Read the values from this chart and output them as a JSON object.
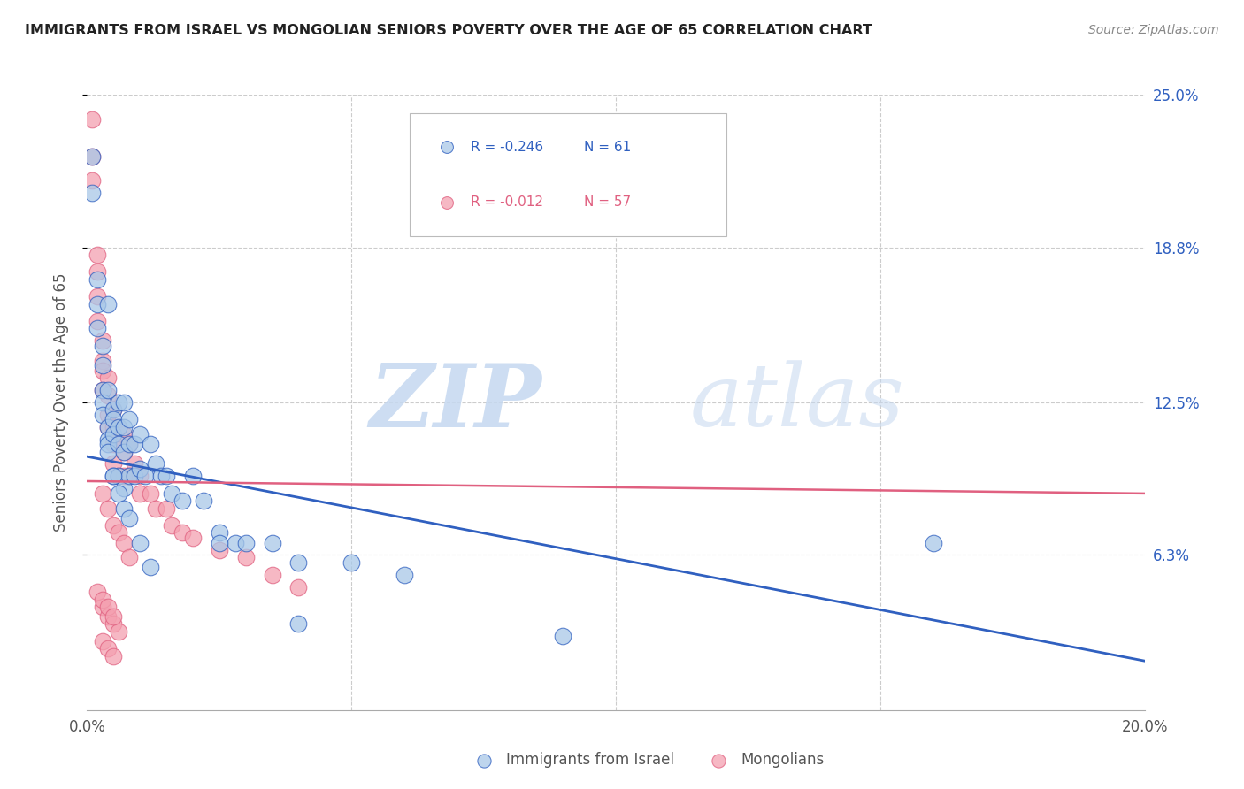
{
  "title": "IMMIGRANTS FROM ISRAEL VS MONGOLIAN SENIORS POVERTY OVER THE AGE OF 65 CORRELATION CHART",
  "source": "Source: ZipAtlas.com",
  "ylabel": "Seniors Poverty Over the Age of 65",
  "legend_label_blue": "Immigrants from Israel",
  "legend_label_pink": "Mongolians",
  "r_blue": -0.246,
  "n_blue": 61,
  "r_pink": -0.012,
  "n_pink": 57,
  "xlim": [
    0.0,
    0.2
  ],
  "ylim": [
    0.0,
    0.25
  ],
  "ytick_right_labels": [
    "25.0%",
    "18.8%",
    "12.5%",
    "6.3%"
  ],
  "ytick_right_positions": [
    0.25,
    0.188,
    0.125,
    0.063
  ],
  "color_blue": "#A8C8E8",
  "color_pink": "#F4A0B0",
  "line_color_blue": "#3060C0",
  "line_color_pink": "#E06080",
  "watermark_zip": "ZIP",
  "watermark_atlas": "atlas",
  "blue_line_x0": 0.0,
  "blue_line_y0": 0.103,
  "blue_line_x1": 0.2,
  "blue_line_y1": 0.02,
  "pink_line_x0": 0.0,
  "pink_line_y0": 0.093,
  "pink_line_x1": 0.2,
  "pink_line_y1": 0.088,
  "blue_scatter_x": [
    0.001,
    0.001,
    0.002,
    0.002,
    0.002,
    0.003,
    0.003,
    0.003,
    0.003,
    0.003,
    0.004,
    0.004,
    0.004,
    0.004,
    0.004,
    0.005,
    0.005,
    0.005,
    0.005,
    0.006,
    0.006,
    0.006,
    0.006,
    0.007,
    0.007,
    0.007,
    0.007,
    0.008,
    0.008,
    0.008,
    0.009,
    0.009,
    0.01,
    0.01,
    0.011,
    0.012,
    0.013,
    0.014,
    0.015,
    0.016,
    0.018,
    0.02,
    0.022,
    0.025,
    0.028,
    0.03,
    0.035,
    0.04,
    0.05,
    0.06,
    0.004,
    0.005,
    0.006,
    0.007,
    0.008,
    0.01,
    0.012,
    0.025,
    0.04,
    0.16,
    0.09
  ],
  "blue_scatter_y": [
    0.225,
    0.21,
    0.175,
    0.165,
    0.155,
    0.148,
    0.14,
    0.13,
    0.125,
    0.12,
    0.165,
    0.115,
    0.11,
    0.108,
    0.105,
    0.122,
    0.118,
    0.112,
    0.095,
    0.125,
    0.115,
    0.108,
    0.095,
    0.125,
    0.115,
    0.105,
    0.09,
    0.118,
    0.108,
    0.095,
    0.108,
    0.095,
    0.112,
    0.098,
    0.095,
    0.108,
    0.1,
    0.095,
    0.095,
    0.088,
    0.085,
    0.095,
    0.085,
    0.072,
    0.068,
    0.068,
    0.068,
    0.06,
    0.06,
    0.055,
    0.13,
    0.095,
    0.088,
    0.082,
    0.078,
    0.068,
    0.058,
    0.068,
    0.035,
    0.068,
    0.03
  ],
  "pink_scatter_x": [
    0.001,
    0.001,
    0.001,
    0.002,
    0.002,
    0.002,
    0.002,
    0.003,
    0.003,
    0.003,
    0.003,
    0.004,
    0.004,
    0.004,
    0.004,
    0.005,
    0.005,
    0.005,
    0.005,
    0.006,
    0.006,
    0.006,
    0.007,
    0.007,
    0.007,
    0.008,
    0.008,
    0.009,
    0.01,
    0.01,
    0.012,
    0.013,
    0.015,
    0.016,
    0.018,
    0.02,
    0.025,
    0.03,
    0.035,
    0.04,
    0.003,
    0.004,
    0.005,
    0.006,
    0.007,
    0.008,
    0.003,
    0.004,
    0.005,
    0.006,
    0.003,
    0.004,
    0.005,
    0.002,
    0.003,
    0.004,
    0.005
  ],
  "pink_scatter_y": [
    0.24,
    0.225,
    0.215,
    0.185,
    0.178,
    0.168,
    0.158,
    0.15,
    0.142,
    0.138,
    0.13,
    0.135,
    0.128,
    0.12,
    0.115,
    0.122,
    0.115,
    0.108,
    0.1,
    0.115,
    0.108,
    0.095,
    0.112,
    0.105,
    0.095,
    0.108,
    0.095,
    0.1,
    0.095,
    0.088,
    0.088,
    0.082,
    0.082,
    0.075,
    0.072,
    0.07,
    0.065,
    0.062,
    0.055,
    0.05,
    0.088,
    0.082,
    0.075,
    0.072,
    0.068,
    0.062,
    0.042,
    0.038,
    0.035,
    0.032,
    0.028,
    0.025,
    0.022,
    0.048,
    0.045,
    0.042,
    0.038
  ]
}
